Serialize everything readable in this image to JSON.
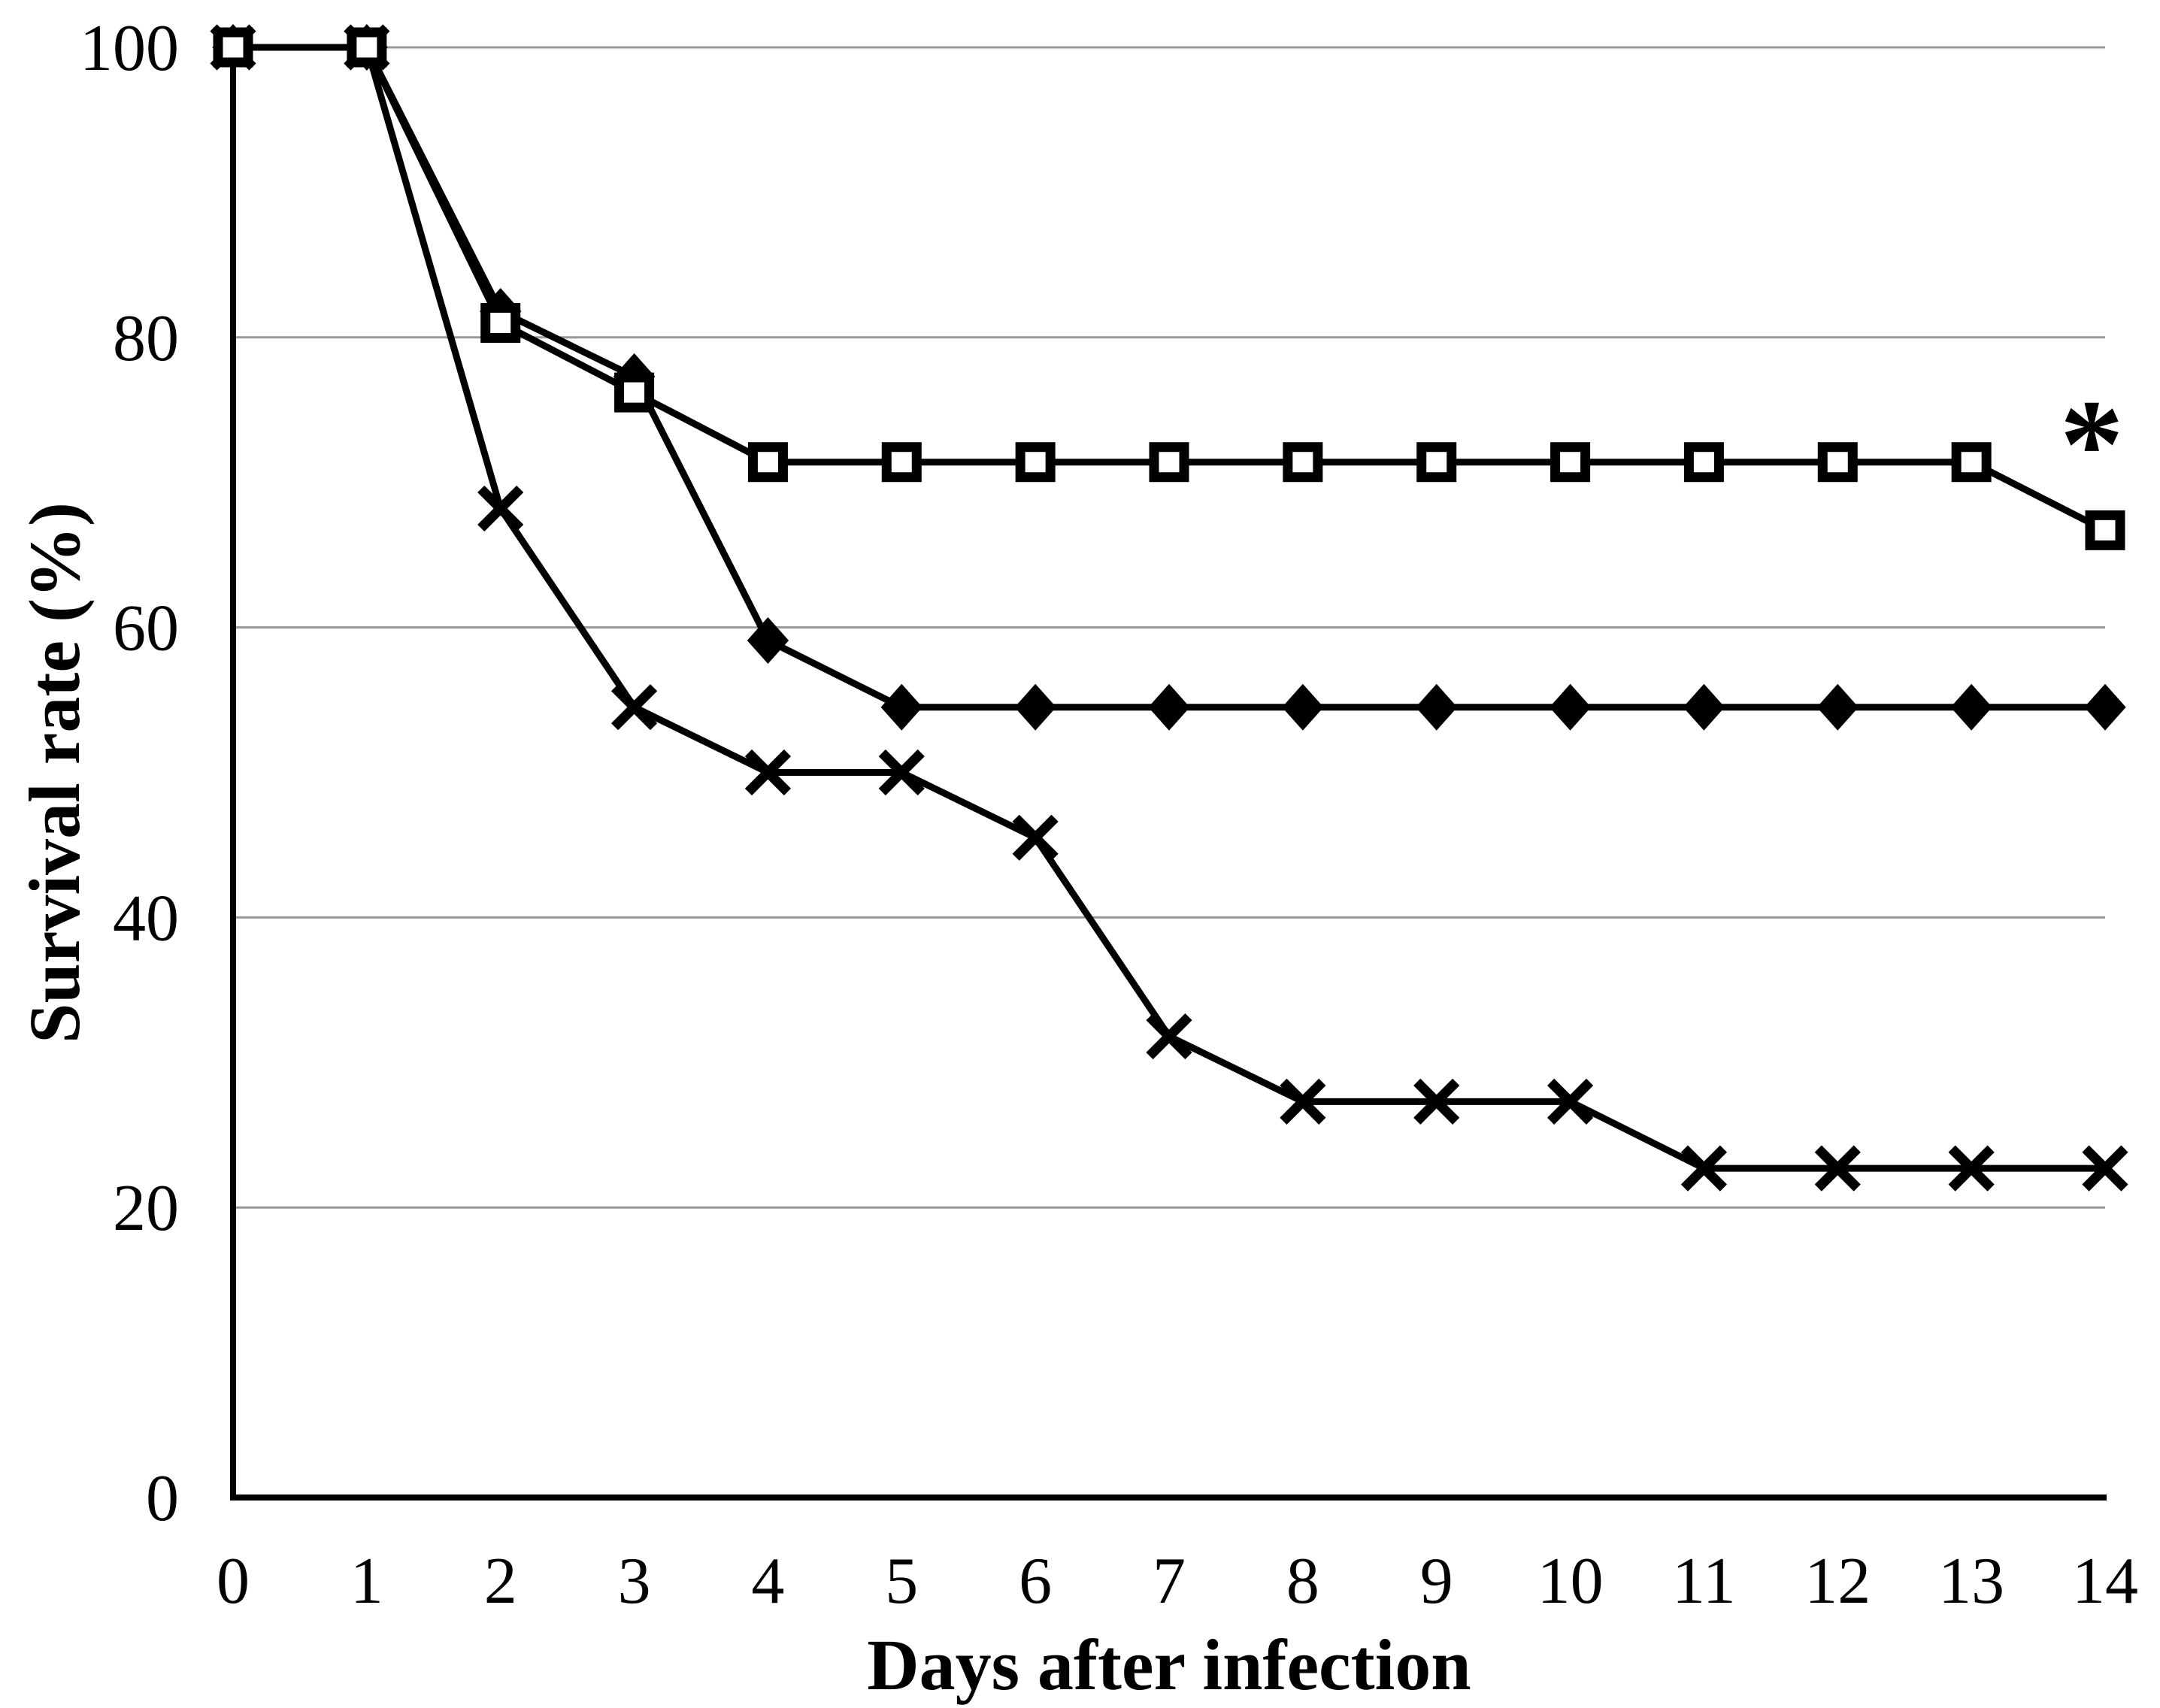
{
  "chart_data": {
    "type": "line",
    "title": "",
    "xlabel": "Days after infection",
    "ylabel": "Survival rate (%)",
    "x": [
      0,
      1,
      2,
      3,
      4,
      5,
      6,
      7,
      8,
      9,
      10,
      11,
      12,
      13,
      14
    ],
    "xlim": [
      0,
      14
    ],
    "ylim": [
      0,
      100
    ],
    "xticks": [
      "0",
      "1",
      "2",
      "3",
      "4",
      "5",
      "6",
      "7",
      "8",
      "9",
      "10",
      "11",
      "12",
      "13",
      "14"
    ],
    "yticks": [
      "0",
      "20",
      "40",
      "60",
      "80",
      "100"
    ],
    "ytick_values": [
      0,
      20,
      40,
      60,
      80,
      100
    ],
    "grid": "horizontal",
    "legend": "none",
    "background_color": "#ffffff",
    "axis_color": "#000000",
    "gridline_color": "#999999",
    "series_color": "#000000",
    "series": [
      {
        "name": "x-cross-series",
        "marker": "x-cross",
        "color": "#000000",
        "values": [
          100,
          100,
          68.2,
          54.5,
          50.0,
          50.0,
          45.5,
          31.8,
          27.3,
          27.3,
          27.3,
          22.7,
          22.7,
          22.7,
          22.7
        ]
      },
      {
        "name": "filled-diamond-series",
        "marker": "filled-diamond",
        "color": "#000000",
        "values": [
          100,
          100,
          81.8,
          77.3,
          59.1,
          54.5,
          54.5,
          54.5,
          54.5,
          54.5,
          54.5,
          54.5,
          54.5,
          54.5,
          54.5
        ]
      },
      {
        "name": "open-square-series",
        "marker": "open-square",
        "color": "#000000",
        "values": [
          100,
          100,
          81.0,
          76.2,
          71.4,
          71.4,
          71.4,
          71.4,
          71.4,
          71.4,
          71.4,
          71.4,
          71.4,
          71.4,
          66.7
        ]
      }
    ],
    "annotations": [
      {
        "text": "*",
        "x": 13.9,
        "y": 74.5
      }
    ]
  }
}
